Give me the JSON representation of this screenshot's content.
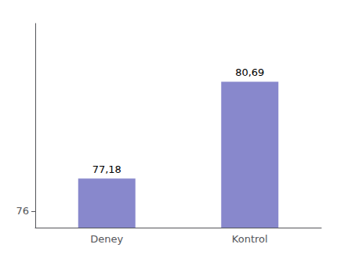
{
  "chart_data": {
    "type": "bar",
    "categories": [
      "Deney",
      "Kontrol"
    ],
    "values": [
      77.18,
      80.69
    ],
    "value_labels": [
      "77,18",
      "80,69"
    ],
    "data_labels": true,
    "color": "#8888cc",
    "ylim": [
      75.4,
      82.8
    ],
    "yticks": [
      76
    ],
    "grid": false
  }
}
